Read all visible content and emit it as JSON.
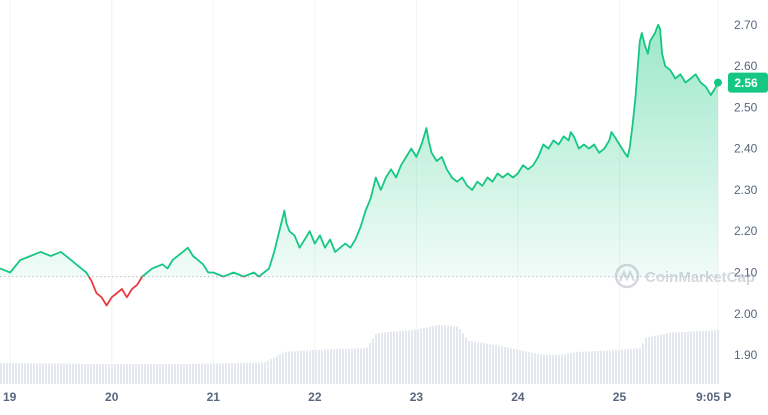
{
  "watermark": {
    "text": "CoinMarketCap"
  },
  "colors": {
    "up": "#16c784",
    "down": "#ea3943",
    "volume": "#e5e8ee",
    "grid": "#f1f3f6",
    "baseline": "#b8bec8",
    "badge_text": "#ffffff"
  },
  "chart_data": {
    "type": "area",
    "title": "",
    "xlabel": "",
    "ylabel": "",
    "x_ticks": [
      "19",
      "20",
      "21",
      "22",
      "23",
      "24",
      "25",
      "9:05 P"
    ],
    "ylim": [
      1.83,
      2.76
    ],
    "y_ticks": [
      1.9,
      2.0,
      2.1,
      2.2,
      2.3,
      2.4,
      2.5,
      2.6,
      2.7
    ],
    "y_tick_labels": [
      "1.90",
      "2.00",
      "2.10",
      "2.20",
      "2.30",
      "2.40",
      "2.50",
      "2.60",
      "2.70"
    ],
    "reference_price": 2.09,
    "current_price": 2.56,
    "current_price_label": "2.56",
    "grid": true,
    "series": [
      {
        "kind": "price",
        "points": [
          [
            18.9,
            2.11
          ],
          [
            19.0,
            2.1
          ],
          [
            19.1,
            2.13
          ],
          [
            19.2,
            2.14
          ],
          [
            19.3,
            2.15
          ],
          [
            19.4,
            2.14
          ],
          [
            19.5,
            2.15
          ],
          [
            19.6,
            2.13
          ],
          [
            19.65,
            2.12
          ],
          [
            19.75,
            2.1
          ],
          [
            19.8,
            2.08
          ],
          [
            19.85,
            2.05
          ],
          [
            19.9,
            2.04
          ],
          [
            19.95,
            2.02
          ],
          [
            20.0,
            2.04
          ],
          [
            20.1,
            2.06
          ],
          [
            20.15,
            2.04
          ],
          [
            20.2,
            2.06
          ],
          [
            20.25,
            2.07
          ],
          [
            20.3,
            2.09
          ],
          [
            20.35,
            2.1
          ],
          [
            20.4,
            2.11
          ],
          [
            20.5,
            2.12
          ],
          [
            20.55,
            2.11
          ],
          [
            20.6,
            2.13
          ],
          [
            20.7,
            2.15
          ],
          [
            20.75,
            2.16
          ],
          [
            20.8,
            2.14
          ],
          [
            20.85,
            2.13
          ],
          [
            20.9,
            2.12
          ],
          [
            20.95,
            2.1
          ],
          [
            21.0,
            2.1
          ],
          [
            21.1,
            2.09
          ],
          [
            21.2,
            2.1
          ],
          [
            21.3,
            2.09
          ],
          [
            21.4,
            2.1
          ],
          [
            21.45,
            2.09
          ],
          [
            21.5,
            2.1
          ],
          [
            21.55,
            2.11
          ],
          [
            21.6,
            2.15
          ],
          [
            21.65,
            2.2
          ],
          [
            21.7,
            2.25
          ],
          [
            21.72,
            2.22
          ],
          [
            21.75,
            2.2
          ],
          [
            21.8,
            2.19
          ],
          [
            21.85,
            2.16
          ],
          [
            21.9,
            2.18
          ],
          [
            21.95,
            2.2
          ],
          [
            22.0,
            2.17
          ],
          [
            22.05,
            2.19
          ],
          [
            22.1,
            2.16
          ],
          [
            22.15,
            2.18
          ],
          [
            22.2,
            2.15
          ],
          [
            22.3,
            2.17
          ],
          [
            22.35,
            2.16
          ],
          [
            22.4,
            2.18
          ],
          [
            22.45,
            2.21
          ],
          [
            22.5,
            2.25
          ],
          [
            22.55,
            2.28
          ],
          [
            22.6,
            2.33
          ],
          [
            22.65,
            2.3
          ],
          [
            22.7,
            2.33
          ],
          [
            22.75,
            2.35
          ],
          [
            22.8,
            2.33
          ],
          [
            22.85,
            2.36
          ],
          [
            22.9,
            2.38
          ],
          [
            22.95,
            2.4
          ],
          [
            23.0,
            2.38
          ],
          [
            23.05,
            2.41
          ],
          [
            23.1,
            2.45
          ],
          [
            23.12,
            2.42
          ],
          [
            23.15,
            2.39
          ],
          [
            23.2,
            2.37
          ],
          [
            23.25,
            2.38
          ],
          [
            23.3,
            2.35
          ],
          [
            23.35,
            2.33
          ],
          [
            23.4,
            2.32
          ],
          [
            23.45,
            2.33
          ],
          [
            23.5,
            2.31
          ],
          [
            23.55,
            2.3
          ],
          [
            23.6,
            2.32
          ],
          [
            23.65,
            2.31
          ],
          [
            23.7,
            2.33
          ],
          [
            23.75,
            2.32
          ],
          [
            23.8,
            2.34
          ],
          [
            23.85,
            2.33
          ],
          [
            23.9,
            2.34
          ],
          [
            23.95,
            2.33
          ],
          [
            24.0,
            2.34
          ],
          [
            24.05,
            2.36
          ],
          [
            24.1,
            2.35
          ],
          [
            24.15,
            2.36
          ],
          [
            24.2,
            2.38
          ],
          [
            24.25,
            2.41
          ],
          [
            24.3,
            2.4
          ],
          [
            24.35,
            2.42
          ],
          [
            24.4,
            2.41
          ],
          [
            24.45,
            2.43
          ],
          [
            24.5,
            2.42
          ],
          [
            24.52,
            2.44
          ],
          [
            24.55,
            2.43
          ],
          [
            24.6,
            2.4
          ],
          [
            24.65,
            2.41
          ],
          [
            24.7,
            2.4
          ],
          [
            24.75,
            2.41
          ],
          [
            24.8,
            2.39
          ],
          [
            24.85,
            2.4
          ],
          [
            24.9,
            2.42
          ],
          [
            24.92,
            2.44
          ],
          [
            24.95,
            2.43
          ],
          [
            25.0,
            2.41
          ],
          [
            25.05,
            2.39
          ],
          [
            25.08,
            2.38
          ],
          [
            25.1,
            2.4
          ],
          [
            25.13,
            2.46
          ],
          [
            25.16,
            2.53
          ],
          [
            25.18,
            2.6
          ],
          [
            25.2,
            2.66
          ],
          [
            25.22,
            2.68
          ],
          [
            25.25,
            2.65
          ],
          [
            25.28,
            2.63
          ],
          [
            25.3,
            2.66
          ],
          [
            25.35,
            2.68
          ],
          [
            25.38,
            2.7
          ],
          [
            25.4,
            2.69
          ],
          [
            25.42,
            2.63
          ],
          [
            25.45,
            2.6
          ],
          [
            25.5,
            2.59
          ],
          [
            25.55,
            2.57
          ],
          [
            25.6,
            2.58
          ],
          [
            25.65,
            2.56
          ],
          [
            25.7,
            2.57
          ],
          [
            25.75,
            2.58
          ],
          [
            25.8,
            2.56
          ],
          [
            25.85,
            2.55
          ],
          [
            25.9,
            2.53
          ],
          [
            25.95,
            2.55
          ],
          [
            25.97,
            2.56
          ]
        ]
      },
      {
        "kind": "volume",
        "points": [
          [
            18.9,
            0.34
          ],
          [
            19.5,
            0.33
          ],
          [
            20.0,
            0.32
          ],
          [
            20.5,
            0.32
          ],
          [
            21.0,
            0.33
          ],
          [
            21.5,
            0.35
          ],
          [
            21.7,
            0.52
          ],
          [
            22.0,
            0.55
          ],
          [
            22.5,
            0.58
          ],
          [
            22.6,
            0.82
          ],
          [
            23.0,
            0.88
          ],
          [
            23.2,
            0.95
          ],
          [
            23.4,
            0.93
          ],
          [
            23.5,
            0.7
          ],
          [
            23.8,
            0.62
          ],
          [
            24.0,
            0.55
          ],
          [
            24.2,
            0.48
          ],
          [
            24.4,
            0.47
          ],
          [
            24.6,
            0.52
          ],
          [
            25.0,
            0.55
          ],
          [
            25.2,
            0.58
          ],
          [
            25.25,
            0.75
          ],
          [
            25.5,
            0.83
          ],
          [
            25.97,
            0.87
          ]
        ]
      }
    ]
  }
}
